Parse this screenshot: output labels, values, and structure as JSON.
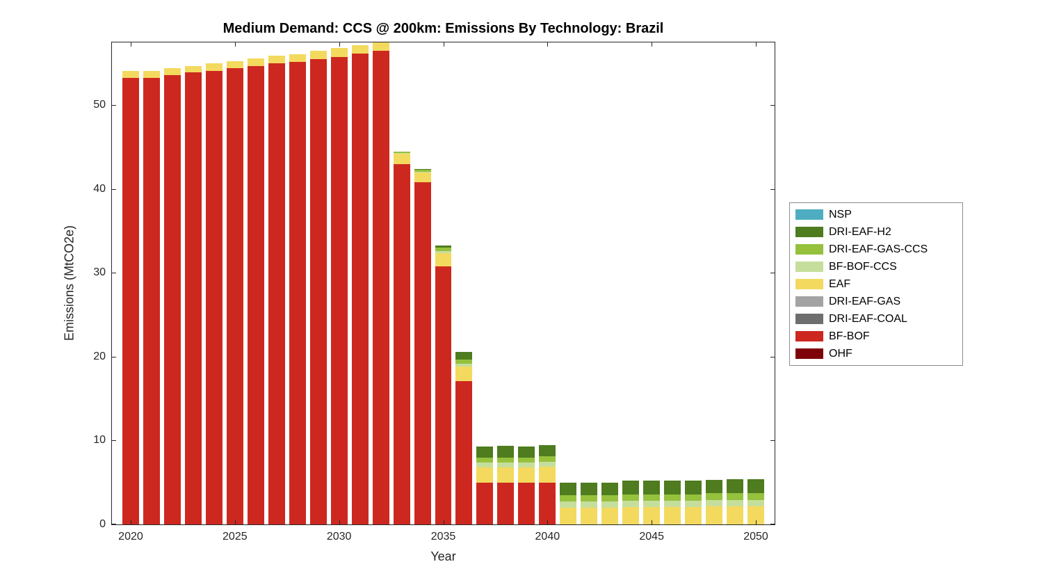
{
  "chart_data": {
    "type": "bar",
    "stacked": true,
    "title": "Medium Demand: CCS @ 200km: Emissions By Technology: Brazil",
    "xlabel": "Year",
    "ylabel": "Emissions (MtCO2e)",
    "grid": false,
    "legend_position": "right-outside",
    "xlim": [
      2019.1,
      2050.9
    ],
    "ylim": [
      0,
      57.5
    ],
    "xticks": [
      2020,
      2025,
      2030,
      2035,
      2040,
      2045,
      2050
    ],
    "yticks": [
      0,
      10,
      20,
      30,
      40,
      50
    ],
    "x": [
      2020,
      2021,
      2022,
      2023,
      2024,
      2025,
      2026,
      2027,
      2028,
      2029,
      2030,
      2031,
      2032,
      2033,
      2034,
      2035,
      2036,
      2037,
      2038,
      2039,
      2040,
      2041,
      2042,
      2043,
      2044,
      2045,
      2046,
      2047,
      2048,
      2049,
      2050
    ],
    "bar_width_fraction": 0.8,
    "series": [
      {
        "name": "OHF",
        "color": "#7e0308",
        "values": [
          0,
          0,
          0,
          0,
          0,
          0,
          0,
          0,
          0,
          0,
          0,
          0,
          0,
          0,
          0,
          0,
          0,
          0,
          0,
          0,
          0,
          0,
          0,
          0,
          0,
          0,
          0,
          0,
          0,
          0,
          0
        ]
      },
      {
        "name": "BF-BOF",
        "color": "#cd2820",
        "values": [
          53.3,
          53.3,
          53.6,
          53.9,
          54.1,
          54.4,
          54.7,
          55.0,
          55.2,
          55.5,
          55.8,
          56.2,
          56.5,
          43.0,
          40.8,
          30.8,
          17.1,
          5.0,
          5.0,
          5.0,
          5.0,
          0,
          0,
          0,
          0,
          0,
          0,
          0,
          0,
          0,
          0
        ]
      },
      {
        "name": "DRI-EAF-COAL",
        "color": "#6e6e6e",
        "values": [
          0,
          0,
          0,
          0,
          0,
          0,
          0,
          0,
          0,
          0,
          0,
          0,
          0,
          0,
          0,
          0,
          0,
          0,
          0,
          0,
          0,
          0,
          0,
          0,
          0,
          0,
          0,
          0,
          0,
          0,
          0
        ]
      },
      {
        "name": "DRI-EAF-GAS",
        "color": "#a3a3a3",
        "values": [
          0,
          0,
          0,
          0,
          0,
          0,
          0,
          0,
          0,
          0,
          0,
          0,
          0,
          0,
          0,
          0,
          0,
          0,
          0,
          0,
          0,
          0,
          0,
          0,
          0,
          0,
          0,
          0,
          0,
          0,
          0
        ]
      },
      {
        "name": "EAF",
        "color": "#f3da5e",
        "values": [
          0.8,
          0.8,
          0.8,
          0.8,
          0.9,
          0.9,
          0.9,
          0.9,
          0.9,
          1.0,
          1.0,
          1.0,
          1.0,
          1.2,
          1.2,
          1.6,
          1.7,
          1.8,
          1.8,
          1.8,
          1.9,
          2.0,
          2.0,
          2.0,
          2.1,
          2.1,
          2.1,
          2.1,
          2.2,
          2.2,
          2.2
        ]
      },
      {
        "name": "BF-BOF-CCS",
        "color": "#c6de9c",
        "values": [
          0,
          0,
          0,
          0,
          0,
          0,
          0,
          0,
          0,
          0,
          0,
          0,
          0,
          0.1,
          0.1,
          0.2,
          0.4,
          0.6,
          0.6,
          0.6,
          0.6,
          0.7,
          0.7,
          0.7,
          0.7,
          0.7,
          0.7,
          0.7,
          0.7,
          0.7,
          0.7
        ]
      },
      {
        "name": "DRI-EAF-GAS-CCS",
        "color": "#95c13d",
        "values": [
          0,
          0,
          0,
          0,
          0,
          0,
          0,
          0,
          0,
          0,
          0,
          0,
          0,
          0.2,
          0.2,
          0.4,
          0.5,
          0.6,
          0.6,
          0.6,
          0.6,
          0.8,
          0.8,
          0.8,
          0.8,
          0.8,
          0.8,
          0.8,
          0.8,
          0.8,
          0.8
        ]
      },
      {
        "name": "DRI-EAF-H2",
        "color": "#4e7c1e",
        "values": [
          0,
          0,
          0,
          0,
          0,
          0,
          0,
          0,
          0,
          0,
          0,
          0,
          0,
          0,
          0.1,
          0.3,
          0.9,
          1.3,
          1.4,
          1.3,
          1.4,
          1.5,
          1.5,
          1.5,
          1.6,
          1.6,
          1.6,
          1.6,
          1.6,
          1.7,
          1.7
        ]
      },
      {
        "name": "NSP",
        "color": "#4fadc2",
        "values": [
          0,
          0,
          0,
          0,
          0,
          0,
          0,
          0,
          0,
          0,
          0,
          0,
          0,
          0,
          0,
          0,
          0,
          0,
          0,
          0,
          0,
          0,
          0,
          0,
          0,
          0,
          0,
          0,
          0,
          0,
          0
        ]
      }
    ],
    "legend_entries_top_to_bottom": [
      "NSP",
      "DRI-EAF-H2",
      "DRI-EAF-GAS-CCS",
      "BF-BOF-CCS",
      "EAF",
      "DRI-EAF-GAS",
      "DRI-EAF-COAL",
      "BF-BOF",
      "OHF"
    ]
  }
}
